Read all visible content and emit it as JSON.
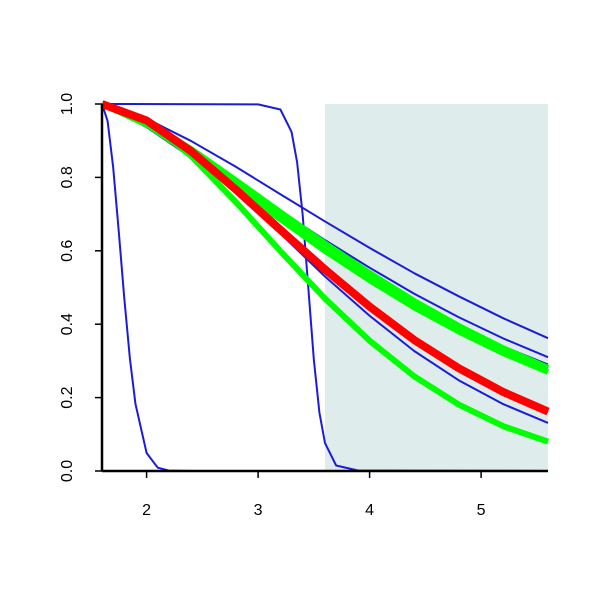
{
  "chart_data": {
    "type": "line",
    "xlim": [
      1.6,
      5.6
    ],
    "ylim": [
      0,
      1
    ],
    "xticks": [
      2,
      3,
      4,
      5
    ],
    "yticks": [
      {
        "value": 0,
        "label": "0.0"
      },
      0.2,
      0.4,
      0.6,
      0.8,
      {
        "value": 1,
        "label": "1.0"
      }
    ],
    "shaded_region": {
      "x": [
        3.6,
        5.6
      ],
      "color": "#deecec"
    },
    "series": [
      {
        "color": "#1c1cd8",
        "line_width": 2,
        "x": [
          1.6,
          2.0,
          2.4,
          2.8,
          3.2,
          3.6,
          4.0,
          4.4,
          4.8,
          5.2,
          5.6
        ],
        "values": [
          1,
          0.96,
          0.899,
          0.829,
          0.754,
          0.68,
          0.608,
          0.539,
          0.476,
          0.416,
          0.362
        ]
      },
      {
        "color": "#1c1cd8",
        "line_width": 2,
        "x": [
          1.6,
          2.0,
          2.4,
          2.8,
          3.2,
          3.6,
          4.0,
          4.4,
          4.8,
          5.2,
          5.6
        ],
        "values": [
          1,
          0.948,
          0.873,
          0.791,
          0.709,
          0.629,
          0.554,
          0.483,
          0.419,
          0.361,
          0.31
        ]
      },
      {
        "color": "#1c1cd8",
        "line_width": 2,
        "x": [
          1.6,
          2.0,
          2.4,
          2.8,
          3.2,
          3.6,
          4.0,
          4.4,
          4.8,
          5.2,
          5.6
        ],
        "values": [
          1,
          0.937,
          0.854,
          0.767,
          0.682,
          0.6,
          0.525,
          0.456,
          0.394,
          0.339,
          0.29
        ]
      },
      {
        "color": "#1c1cd8",
        "line_width": 2,
        "x": [
          1.6,
          2.0,
          2.4,
          2.8,
          3.2,
          3.6,
          4.0,
          4.4,
          4.8,
          5.2,
          5.6
        ],
        "values": [
          1,
          0.96,
          0.88,
          0.778,
          0.668,
          0.56,
          0.457,
          0.365,
          0.285,
          0.218,
          0.16
        ]
      },
      {
        "color": "#1c1cd8",
        "line_width": 2,
        "x": [
          1.6,
          2.0,
          2.4,
          2.8,
          3.2,
          3.6,
          4.0,
          4.4,
          4.8,
          5.2,
          5.6
        ],
        "values": [
          1,
          0.958,
          0.873,
          0.764,
          0.647,
          0.53,
          0.423,
          0.327,
          0.247,
          0.182,
          0.131
        ]
      },
      {
        "color": "#1c1cd8",
        "line_width": 2,
        "x": [
          1.6,
          1.65,
          1.7,
          1.75,
          1.8,
          1.85,
          1.9,
          2.0,
          2.1,
          2.2,
          2.4,
          5.6
        ],
        "values": [
          1,
          0.954,
          0.828,
          0.654,
          0.47,
          0.307,
          0.183,
          0.049,
          0.009,
          0.001,
          0,
          0
        ]
      },
      {
        "color": "#1c1cd8",
        "line_width": 2,
        "x": [
          1.6,
          3.0,
          3.2,
          3.3,
          3.35,
          3.4,
          3.45,
          3.5,
          3.55,
          3.6,
          3.7,
          3.9,
          5.6
        ],
        "values": [
          1,
          0.999,
          0.985,
          0.924,
          0.841,
          0.697,
          0.5,
          0.303,
          0.159,
          0.076,
          0.015,
          0.001,
          0
        ]
      },
      {
        "color": "#00ff00",
        "line_width": 6,
        "x": [
          1.6,
          2.0,
          2.4,
          2.8,
          3.2,
          3.6,
          4.0,
          4.4,
          4.8,
          5.2,
          5.6
        ],
        "values": [
          1,
          0.955,
          0.858,
          0.733,
          0.599,
          0.47,
          0.355,
          0.258,
          0.181,
          0.122,
          0.08
        ]
      },
      {
        "color": "#00ff00",
        "line_width": 6,
        "x": [
          1.6,
          2.0,
          2.4,
          2.8,
          3.2,
          3.6,
          4.0,
          4.4,
          4.8,
          5.2,
          5.6
        ],
        "values": [
          1,
          0.944,
          0.863,
          0.775,
          0.686,
          0.6,
          0.52,
          0.446,
          0.38,
          0.321,
          0.27
        ]
      },
      {
        "color": "#00ff00",
        "line_width": 6,
        "x": [
          1.6,
          2.0,
          2.4,
          2.8,
          3.2,
          3.6,
          4.0,
          4.4,
          4.8,
          5.2,
          5.6
        ],
        "values": [
          1,
          0.952,
          0.877,
          0.792,
          0.705,
          0.62,
          0.539,
          0.463,
          0.395,
          0.334,
          0.281
        ]
      },
      {
        "color": "#ff0000",
        "line_width": 8,
        "x": [
          1.6,
          2.0,
          2.4,
          2.8,
          3.2,
          3.6,
          4.0,
          4.4,
          4.8,
          5.2,
          5.6
        ],
        "values": [
          1,
          0.955,
          0.871,
          0.767,
          0.657,
          0.549,
          0.448,
          0.357,
          0.28,
          0.215,
          0.162
        ]
      }
    ]
  }
}
